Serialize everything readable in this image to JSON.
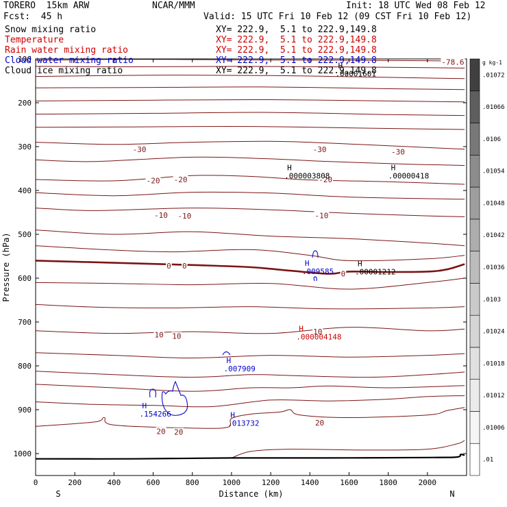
{
  "header": {
    "model": "TORERO  15km ARW",
    "org": "NCAR/MMM",
    "init": "Init: 18 UTC Wed 08 Feb 12",
    "fcst": "Fcst:  45 h",
    "valid": "Valid: 15 UTC Fri 10 Feb 12 (09 CST Fri 10 Feb 12)"
  },
  "fields": [
    {
      "label": "Snow mixing ratio",
      "xy": "XY= 222.9,  5.1 to 222.9,149.8",
      "color": "#000000"
    },
    {
      "label": "Temperature",
      "xy": "XY= 222.9,  5.1 to 222.9,149.8",
      "color": "#cc0000"
    },
    {
      "label": "Rain water mixing ratio",
      "xy": "XY= 222.9,  5.1 to 222.9,149.8",
      "color": "#cc0000"
    },
    {
      "label": "Cloud water mixing ratio",
      "xy": "XY= 222.9,  5.1 to 222.9,149.8",
      "color": "#0000cc"
    },
    {
      "label": "Cloud ice mixing ratio",
      "xy": "XY= 222.9,  5.1 to 222.9,149.8",
      "color": "#000000"
    }
  ],
  "chart_data": {
    "type": "contour",
    "xlabel": "Distance (km)",
    "ylabel": "Pressure (hPa)",
    "xlim": [
      0,
      2200
    ],
    "ylim": [
      1050,
      100
    ],
    "x_ticks": [
      0,
      200,
      400,
      600,
      800,
      1000,
      1200,
      1400,
      1600,
      1800,
      2000
    ],
    "y_ticks": [
      100,
      200,
      300,
      400,
      500,
      600,
      700,
      800,
      900,
      1000
    ],
    "x_end_labels": {
      "left": "S",
      "right": "N"
    },
    "temperature_contour_labels": [
      {
        "text": "-78.6",
        "x": 2130,
        "p": 107
      },
      {
        "text": "-30",
        "x": 530,
        "p": 306
      },
      {
        "text": "-30",
        "x": 1450,
        "p": 306
      },
      {
        "text": "-30",
        "x": 1850,
        "p": 312
      },
      {
        "text": "-20",
        "x": 600,
        "p": 377
      },
      {
        "text": "-20",
        "x": 740,
        "p": 375
      },
      {
        "text": "-20",
        "x": 1480,
        "p": 375
      },
      {
        "text": "-10",
        "x": 640,
        "p": 456
      },
      {
        "text": "-10",
        "x": 760,
        "p": 458
      },
      {
        "text": "-10",
        "x": 1460,
        "p": 457
      },
      {
        "text": "0",
        "x": 680,
        "p": 572
      },
      {
        "text": "0",
        "x": 760,
        "p": 572
      },
      {
        "text": "0",
        "x": 1570,
        "p": 590
      },
      {
        "text": "10",
        "x": 630,
        "p": 729
      },
      {
        "text": "10",
        "x": 720,
        "p": 732
      },
      {
        "text": "10",
        "x": 1440,
        "p": 722
      },
      {
        "text": "20",
        "x": 1450,
        "p": 930
      },
      {
        "text": "20",
        "x": 640,
        "p": 949
      },
      {
        "text": "20",
        "x": 730,
        "p": 951
      }
    ],
    "maxima_labels": [
      {
        "mark": "H",
        "value": ".00001601",
        "x": 1530,
        "p": 127,
        "color": "#000000"
      },
      {
        "mark": "H",
        "value": ".000003808",
        "x": 1270,
        "p": 360,
        "color": "#000000"
      },
      {
        "mark": "H",
        "value": ".00000418",
        "x": 1800,
        "p": 360,
        "color": "#000000"
      },
      {
        "mark": "H",
        "value": ".009585",
        "x": 1360,
        "p": 578,
        "color": "#0000cc"
      },
      {
        "mark": "H",
        "value": ".00001212",
        "x": 1630,
        "p": 579,
        "color": "#000000"
      },
      {
        "mark": "H",
        "value": ".000004148",
        "x": 1330,
        "p": 727,
        "color": "#cc0000"
      },
      {
        "mark": "H",
        "value": ".007909",
        "x": 960,
        "p": 800,
        "color": "#0000cc"
      },
      {
        "mark": "H",
        "value": ".154266",
        "x": 530,
        "p": 903,
        "color": "#0000cc"
      },
      {
        "mark": "H",
        "value": ".013732",
        "x": 980,
        "p": 924,
        "color": "#0000cc"
      }
    ],
    "colorbar": {
      "unit": "g kg-1",
      "labels": [
        ".01",
        ".01006",
        ".01012",
        ".01018",
        ".01024",
        ".0103",
        ".01036",
        ".01042",
        ".01048",
        ".01054",
        ".0106",
        ".01066",
        ".01072"
      ],
      "colors": [
        "#ffffff",
        "#f5f5f5",
        "#ebebeb",
        "#e0e0e0",
        "#d5d5d5",
        "#cacaca",
        "#bcbcbc",
        "#adadad",
        "#9e9e9e",
        "#8c8c8c",
        "#787878",
        "#5e5e5e",
        "#404040"
      ]
    },
    "isotherms": [
      {
        "t": -78.6,
        "pts": [
          [
            0,
            103
          ],
          [
            500,
            101
          ],
          [
            1000,
            102
          ],
          [
            1500,
            103
          ],
          [
            2000,
            104
          ],
          [
            2190,
            106
          ]
        ]
      },
      {
        "t": null,
        "pts": [
          [
            0,
            117
          ],
          [
            500,
            118
          ],
          [
            1000,
            117
          ],
          [
            1500,
            118
          ],
          [
            2000,
            120
          ],
          [
            2190,
            121
          ]
        ]
      },
      {
        "t": null,
        "pts": [
          [
            0,
            140
          ],
          [
            600,
            137
          ],
          [
            1200,
            138
          ],
          [
            1800,
            142
          ],
          [
            2190,
            145
          ]
        ]
      },
      {
        "t": null,
        "pts": [
          [
            0,
            166
          ],
          [
            600,
            165
          ],
          [
            1200,
            164
          ],
          [
            1800,
            168
          ],
          [
            2190,
            170
          ]
        ]
      },
      {
        "t": null,
        "pts": [
          [
            0,
            196
          ],
          [
            600,
            194
          ],
          [
            1200,
            193
          ],
          [
            1800,
            196
          ],
          [
            2190,
            198
          ]
        ]
      },
      {
        "t": null,
        "pts": [
          [
            0,
            226
          ],
          [
            600,
            224
          ],
          [
            1200,
            222
          ],
          [
            1800,
            227
          ],
          [
            2190,
            229
          ]
        ]
      },
      {
        "t": null,
        "pts": [
          [
            0,
            256
          ],
          [
            500,
            255
          ],
          [
            1100,
            254
          ],
          [
            1700,
            258
          ],
          [
            2190,
            261
          ]
        ]
      },
      {
        "t": -30,
        "pts": [
          [
            0,
            290
          ],
          [
            400,
            295
          ],
          [
            800,
            290
          ],
          [
            1200,
            288
          ],
          [
            1500,
            292
          ],
          [
            1900,
            300
          ],
          [
            2190,
            306
          ]
        ]
      },
      {
        "t": null,
        "pts": [
          [
            0,
            330
          ],
          [
            300,
            334
          ],
          [
            800,
            324
          ],
          [
            1200,
            328
          ],
          [
            1500,
            334
          ],
          [
            1900,
            340
          ],
          [
            2190,
            343
          ]
        ]
      },
      {
        "t": -20,
        "pts": [
          [
            0,
            375
          ],
          [
            400,
            378
          ],
          [
            800,
            366
          ],
          [
            1100,
            368
          ],
          [
            1400,
            376
          ],
          [
            1800,
            380
          ],
          [
            2190,
            386
          ]
        ]
      },
      {
        "t": null,
        "pts": [
          [
            0,
            405
          ],
          [
            400,
            412
          ],
          [
            800,
            404
          ],
          [
            1200,
            406
          ],
          [
            1600,
            415
          ],
          [
            2190,
            420
          ]
        ]
      },
      {
        "t": -10,
        "pts": [
          [
            0,
            440
          ],
          [
            300,
            446
          ],
          [
            800,
            440
          ],
          [
            1200,
            444
          ],
          [
            1600,
            452
          ],
          [
            2000,
            458
          ],
          [
            2190,
            460
          ]
        ]
      },
      {
        "t": null,
        "pts": [
          [
            0,
            490
          ],
          [
            400,
            500
          ],
          [
            800,
            494
          ],
          [
            1200,
            504
          ],
          [
            1600,
            510
          ],
          [
            2000,
            520
          ],
          [
            2190,
            526
          ]
        ]
      },
      {
        "t": null,
        "pts": [
          [
            0,
            526
          ],
          [
            400,
            536
          ],
          [
            700,
            540
          ],
          [
            1100,
            535
          ],
          [
            1400,
            548
          ],
          [
            1600,
            560
          ],
          [
            2000,
            556
          ],
          [
            2190,
            548
          ]
        ]
      },
      {
        "t": 0,
        "bold": true,
        "pts": [
          [
            0,
            560
          ],
          [
            400,
            565
          ],
          [
            800,
            570
          ],
          [
            1100,
            575
          ],
          [
            1300,
            583
          ],
          [
            1500,
            590
          ],
          [
            1600,
            585
          ],
          [
            1800,
            586
          ],
          [
            2000,
            585
          ],
          [
            2100,
            580
          ],
          [
            2190,
            568
          ]
        ]
      },
      {
        "t": null,
        "pts": [
          [
            0,
            610
          ],
          [
            400,
            612
          ],
          [
            800,
            615
          ],
          [
            1200,
            612
          ],
          [
            1600,
            625
          ],
          [
            2000,
            610
          ],
          [
            2190,
            600
          ]
        ]
      },
      {
        "t": null,
        "pts": [
          [
            0,
            660
          ],
          [
            300,
            666
          ],
          [
            700,
            668
          ],
          [
            1100,
            665
          ],
          [
            1500,
            670
          ],
          [
            2000,
            668
          ],
          [
            2190,
            665
          ]
        ]
      },
      {
        "t": 10,
        "pts": [
          [
            0,
            720
          ],
          [
            400,
            726
          ],
          [
            800,
            722
          ],
          [
            1200,
            726
          ],
          [
            1600,
            712
          ],
          [
            2000,
            720
          ],
          [
            2190,
            716
          ]
        ]
      },
      {
        "t": null,
        "pts": [
          [
            0,
            770
          ],
          [
            400,
            776
          ],
          [
            800,
            782
          ],
          [
            1200,
            776
          ],
          [
            1600,
            780
          ],
          [
            2000,
            776
          ],
          [
            2190,
            772
          ]
        ]
      },
      {
        "t": null,
        "pts": [
          [
            0,
            812
          ],
          [
            400,
            820
          ],
          [
            800,
            826
          ],
          [
            1100,
            820
          ],
          [
            1300,
            822
          ],
          [
            1700,
            826
          ],
          [
            2000,
            820
          ],
          [
            2190,
            814
          ]
        ]
      },
      {
        "t": null,
        "pts": [
          [
            0,
            842
          ],
          [
            400,
            850
          ],
          [
            800,
            858
          ],
          [
            1100,
            850
          ],
          [
            1300,
            850
          ],
          [
            1500,
            846
          ],
          [
            1800,
            850
          ],
          [
            2190,
            845
          ]
        ]
      },
      {
        "t": null,
        "pts": [
          [
            0,
            882
          ],
          [
            300,
            888
          ],
          [
            600,
            890
          ],
          [
            900,
            893
          ],
          [
            1200,
            878
          ],
          [
            1500,
            880
          ],
          [
            1800,
            876
          ],
          [
            2000,
            870
          ],
          [
            2190,
            868
          ]
        ]
      },
      {
        "t": 20,
        "pts": [
          [
            0,
            938
          ],
          [
            300,
            928
          ],
          [
            350,
            918
          ],
          [
            400,
            935
          ],
          [
            800,
            942
          ],
          [
            980,
            940
          ],
          [
            1000,
            920
          ],
          [
            1100,
            910
          ],
          [
            1250,
            905
          ],
          [
            1300,
            900
          ],
          [
            1350,
            912
          ],
          [
            1600,
            918
          ],
          [
            2000,
            912
          ],
          [
            2100,
            902
          ],
          [
            2190,
            895
          ]
        ]
      },
      {
        "t": null,
        "pts": [
          [
            1000,
            1010
          ],
          [
            1100,
            995
          ],
          [
            1300,
            990
          ],
          [
            1700,
            992
          ],
          [
            2000,
            990
          ],
          [
            2150,
            978
          ],
          [
            2190,
            970
          ]
        ]
      }
    ],
    "ground_line": [
      [
        0,
        1012
      ],
      [
        500,
        1012
      ],
      [
        1000,
        1010
      ],
      [
        1500,
        1010
      ],
      [
        2000,
        1009
      ],
      [
        2150,
        1008
      ],
      [
        2170,
        1002
      ],
      [
        2190,
        1004
      ]
    ]
  }
}
